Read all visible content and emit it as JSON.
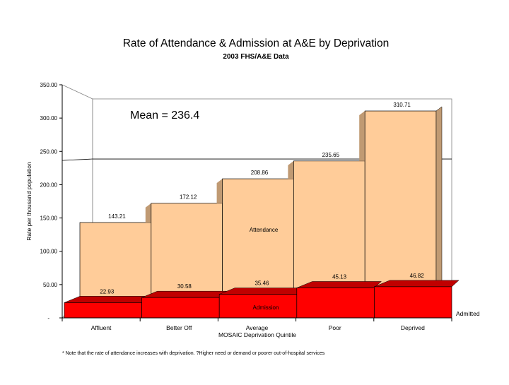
{
  "chart_data": {
    "type": "bar",
    "title": "Rate of Attendance & Admission at A&E by Deprivation",
    "subtitle": "2003 FHS/A&E Data",
    "xlabel": "MOSAIC Deprivation Quintile",
    "ylabel": "Rate per thousand population",
    "ylim": [
      0,
      350
    ],
    "y_ticks": [
      "-",
      "50.00",
      "100.00",
      "150.00",
      "200.00",
      "250.00",
      "300.00",
      "350.00"
    ],
    "grid": false,
    "categories": [
      "Affluent",
      "Better Off",
      "Average",
      "Poor",
      "Deprived"
    ],
    "series": [
      {
        "name": "Attendance",
        "values": [
          143.21,
          172.12,
          208.86,
          235.65,
          310.71
        ],
        "color": "#FFCC99",
        "value_labels": [
          "143.21",
          "172.12",
          "208.86",
          "235.65",
          "310.71"
        ]
      },
      {
        "name": "Admission",
        "values": [
          22.93,
          30.58,
          35.46,
          45.13,
          46.82
        ],
        "color": "#FF0000",
        "value_labels": [
          "22.93",
          "30.58",
          "35.46",
          "45.13",
          "46.82"
        ]
      }
    ],
    "mean_line": {
      "label": "Mean = 236.4",
      "value": 236.4
    },
    "side_label": "Admitted",
    "footnote": "* Note that the rate of attendance increases with deprivation. ?Higher need or demand or poorer out-of-hospital services",
    "colors": {
      "attendance_side": "#C09A73",
      "admission_top": "#C00000",
      "admission_side": "#A00000",
      "wall": "#ffffff"
    }
  }
}
